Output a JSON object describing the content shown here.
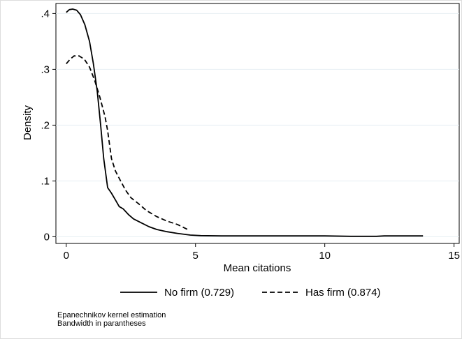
{
  "chart_data": {
    "type": "line",
    "title": "",
    "xlabel": "Mean citations",
    "ylabel": "Density",
    "xlim": [
      -0.4,
      15.2
    ],
    "ylim": [
      -0.012,
      0.418
    ],
    "x_ticks": [
      0,
      5,
      10,
      15
    ],
    "x_tick_labels": [
      "0",
      "5",
      "10",
      "15"
    ],
    "y_ticks": [
      0,
      0.1,
      0.2,
      0.3,
      0.4
    ],
    "y_tick_labels": [
      "0",
      ".1",
      ".2",
      ".3",
      ".4"
    ],
    "grid": "horizontal",
    "legend_position": "bottom",
    "series": [
      {
        "name": "No firm (0.729)",
        "style": "solid",
        "color": "#000000",
        "points": [
          [
            0,
            0.402
          ],
          [
            0.12,
            0.407
          ],
          [
            0.25,
            0.408
          ],
          [
            0.4,
            0.406
          ],
          [
            0.55,
            0.398
          ],
          [
            0.72,
            0.38
          ],
          [
            0.9,
            0.35
          ],
          [
            1.05,
            0.31
          ],
          [
            1.2,
            0.26
          ],
          [
            1.33,
            0.2
          ],
          [
            1.45,
            0.14
          ],
          [
            1.6,
            0.088
          ],
          [
            1.75,
            0.078
          ],
          [
            1.9,
            0.066
          ],
          [
            2.05,
            0.054
          ],
          [
            2.2,
            0.05
          ],
          [
            2.4,
            0.04
          ],
          [
            2.6,
            0.032
          ],
          [
            2.9,
            0.025
          ],
          [
            3.2,
            0.018
          ],
          [
            3.5,
            0.013
          ],
          [
            3.9,
            0.009
          ],
          [
            4.3,
            0.006
          ],
          [
            4.8,
            0.003
          ],
          [
            5.2,
            0.002
          ],
          [
            6.0,
            0.0015
          ],
          [
            7.0,
            0.0015
          ],
          [
            8.0,
            0.0015
          ],
          [
            9.0,
            0.0015
          ],
          [
            10.0,
            0.0015
          ],
          [
            11.0,
            0.0008
          ],
          [
            12.0,
            0.0008
          ],
          [
            12.3,
            0.0015
          ],
          [
            13.0,
            0.0015
          ],
          [
            13.8,
            0.0015
          ]
        ]
      },
      {
        "name": "Has firm (0.874)",
        "style": "dashed",
        "color": "#000000",
        "points": [
          [
            0,
            0.31
          ],
          [
            0.15,
            0.318
          ],
          [
            0.3,
            0.324
          ],
          [
            0.5,
            0.324
          ],
          [
            0.7,
            0.318
          ],
          [
            0.9,
            0.304
          ],
          [
            1.1,
            0.28
          ],
          [
            1.3,
            0.25
          ],
          [
            1.5,
            0.215
          ],
          [
            1.6,
            0.19
          ],
          [
            1.75,
            0.14
          ],
          [
            1.9,
            0.118
          ],
          [
            2.1,
            0.1
          ],
          [
            2.3,
            0.083
          ],
          [
            2.5,
            0.07
          ],
          [
            2.8,
            0.059
          ],
          [
            3.1,
            0.047
          ],
          [
            3.5,
            0.036
          ],
          [
            3.9,
            0.028
          ],
          [
            4.3,
            0.022
          ],
          [
            4.7,
            0.013
          ]
        ]
      }
    ],
    "notes": [
      "Epanechnikov kernel estimation",
      "Bandwidth in parantheses"
    ]
  }
}
